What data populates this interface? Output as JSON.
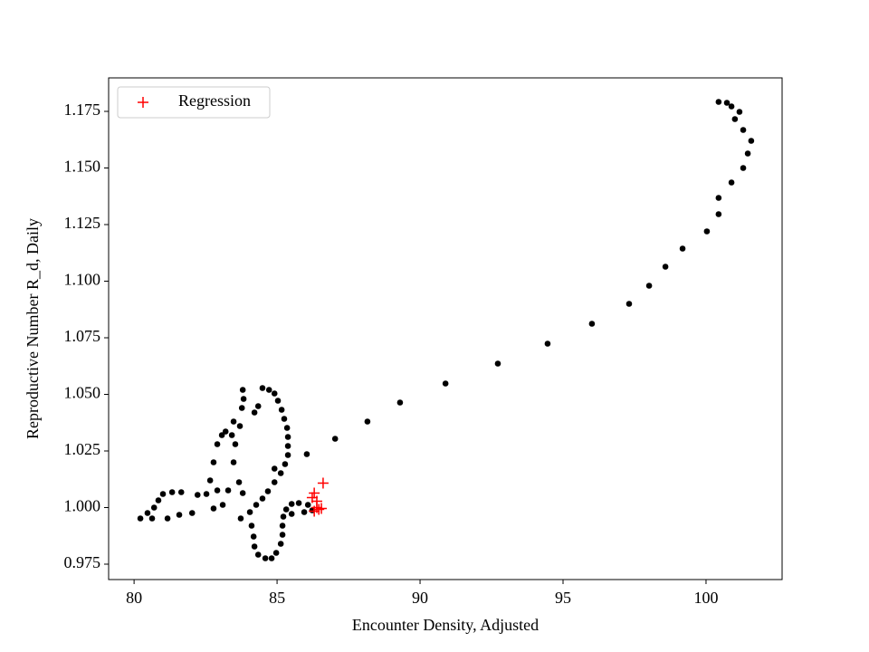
{
  "chart_data": {
    "type": "scatter",
    "xlabel": "Encounter Density, Adjusted",
    "ylabel": "Reproductive Number R_d, Daily",
    "xlim": [
      79.11,
      102.66
    ],
    "ylim": [
      0.9682,
      1.1898
    ],
    "xticks": [
      80,
      85,
      90,
      95,
      100
    ],
    "yticks": [
      {
        "value": 0.975,
        "label": "0.975"
      },
      {
        "value": 1.0,
        "label": "1.000"
      },
      {
        "value": 1.025,
        "label": "1.025"
      },
      {
        "value": 1.05,
        "label": "1.050"
      },
      {
        "value": 1.075,
        "label": "1.075"
      },
      {
        "value": 1.1,
        "label": "1.100"
      },
      {
        "value": 1.125,
        "label": "1.125"
      },
      {
        "value": 1.15,
        "label": "1.150"
      },
      {
        "value": 1.175,
        "label": "1.175"
      }
    ],
    "grid": false,
    "legend": "upper left",
    "series": [
      {
        "color": "#000000",
        "marker": "circle",
        "x": [
          100.44,
          100.73,
          100.89,
          101.17,
          101.01,
          101.3,
          101.58,
          101.46,
          101.3,
          100.89,
          100.44,
          100.44,
          100.03,
          99.18,
          98.58,
          98.01,
          97.31,
          96.01,
          94.46,
          92.72,
          90.89,
          89.3,
          88.16,
          87.03,
          86.04,
          84.91,
          84.49,
          84.72,
          84.91,
          85.03,
          85.16,
          85.25,
          85.35,
          85.38,
          85.38,
          85.38,
          85.28,
          85.13,
          84.91,
          84.68,
          84.49,
          84.27,
          84.05,
          83.73,
          84.11,
          84.18,
          84.21,
          84.34,
          84.59,
          84.81,
          84.97,
          85.13,
          85.19,
          85.19,
          85.22,
          85.32,
          85.51,
          85.76,
          86.08,
          86.23,
          85.95,
          85.51,
          83.8,
          83.67,
          83.48,
          83.54,
          83.42,
          83.2,
          83.07,
          82.91,
          82.78,
          82.66,
          82.53,
          82.22,
          81.65,
          81.33,
          81.01,
          80.85,
          80.7,
          80.47,
          80.22,
          80.63,
          81.17,
          81.58,
          82.03,
          82.78,
          83.1,
          83.8,
          83.83,
          83.77,
          83.48,
          83.7,
          84.21,
          84.34,
          82.91,
          83.29
        ],
        "values": [
          1.1792,
          1.1788,
          1.1772,
          1.1748,
          1.1716,
          1.1668,
          1.162,
          1.1564,
          1.15,
          1.1436,
          1.1368,
          1.1296,
          1.122,
          1.1144,
          1.1064,
          1.098,
          1.09,
          1.0812,
          1.0724,
          1.0636,
          1.0548,
          1.0464,
          1.038,
          1.0304,
          1.0236,
          1.0172,
          1.0528,
          1.052,
          1.0504,
          1.0472,
          1.0432,
          1.0392,
          1.0352,
          1.0312,
          1.0272,
          1.0232,
          1.0192,
          1.0152,
          1.0112,
          1.0072,
          1.004,
          1.0012,
          0.998,
          0.9952,
          0.992,
          0.9872,
          0.9828,
          0.9792,
          0.9776,
          0.9776,
          0.98,
          0.984,
          0.988,
          0.992,
          0.996,
          0.9992,
          1.0016,
          1.002,
          1.0012,
          0.9988,
          0.998,
          0.9972,
          1.0064,
          1.0112,
          1.02,
          1.028,
          1.032,
          1.0336,
          1.032,
          1.028,
          1.02,
          1.012,
          1.006,
          1.0056,
          1.0068,
          1.0068,
          1.006,
          1.0032,
          1.0,
          0.9976,
          0.9952,
          0.9952,
          0.9952,
          0.9968,
          0.9976,
          0.9996,
          1.0012,
          1.052,
          1.048,
          1.044,
          1.038,
          1.036,
          1.042,
          1.0448,
          1.0076,
          1.0076
        ]
      },
      {
        "name": "Regression",
        "color": "#ff0000",
        "marker": "plus",
        "x": [
          86.61,
          86.3,
          86.23,
          86.39,
          86.39,
          86.46,
          86.3,
          86.55
        ],
        "values": [
          1.0108,
          1.0064,
          1.0044,
          1.0028,
          1.0,
          0.9992,
          0.9984,
          0.9996
        ]
      }
    ]
  }
}
